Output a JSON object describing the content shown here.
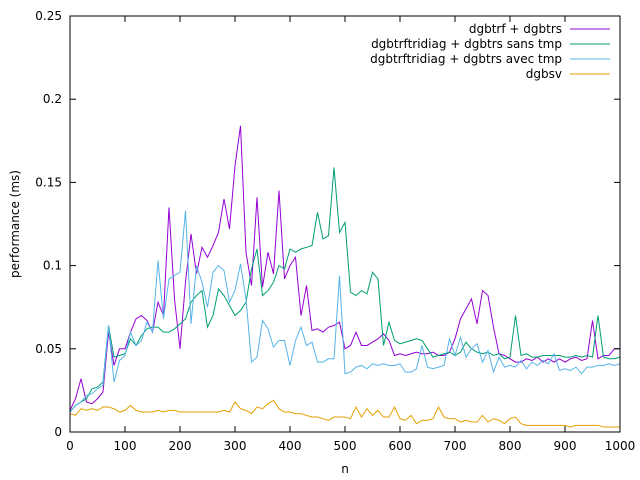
{
  "chart_data": {
    "type": "line",
    "title": "",
    "xlabel": "n",
    "ylabel": "performance (ms)",
    "xlim": [
      0,
      1000
    ],
    "ylim": [
      0,
      0.25
    ],
    "xticks": [
      0,
      100,
      200,
      300,
      400,
      500,
      600,
      700,
      800,
      900,
      1000
    ],
    "yticks": [
      0,
      0.05,
      0.1,
      0.15,
      0.2,
      0.25
    ],
    "xtick_labels": [
      "0",
      "100",
      "200",
      "300",
      "400",
      "500",
      "600",
      "700",
      "800",
      "900",
      "1000"
    ],
    "ytick_labels": [
      "0",
      "0.05",
      "0.1",
      "0.15",
      "0.2",
      "0.25"
    ],
    "grid": false,
    "legend_position": "top-right",
    "x": [
      0,
      10,
      20,
      30,
      40,
      50,
      60,
      70,
      80,
      90,
      100,
      110,
      120,
      130,
      140,
      150,
      160,
      170,
      180,
      190,
      200,
      210,
      220,
      230,
      240,
      250,
      260,
      270,
      280,
      290,
      300,
      310,
      320,
      330,
      340,
      350,
      360,
      370,
      380,
      390,
      400,
      410,
      420,
      430,
      440,
      450,
      460,
      470,
      480,
      490,
      500,
      510,
      520,
      530,
      540,
      550,
      560,
      570,
      580,
      590,
      600,
      610,
      620,
      630,
      640,
      650,
      660,
      670,
      680,
      690,
      700,
      710,
      720,
      730,
      740,
      750,
      760,
      770,
      780,
      790,
      800,
      810,
      820,
      830,
      840,
      850,
      860,
      870,
      880,
      890,
      900,
      910,
      920,
      930,
      940,
      950,
      960,
      970,
      980,
      990,
      1000
    ],
    "series": [
      {
        "name": "dgbtrf + dgbtrs",
        "color": "#9400d3",
        "values": [
          0.013,
          0.02,
          0.032,
          0.018,
          0.017,
          0.02,
          0.024,
          0.06,
          0.04,
          0.05,
          0.05,
          0.06,
          0.068,
          0.07,
          0.067,
          0.06,
          0.078,
          0.07,
          0.135,
          0.08,
          0.05,
          0.09,
          0.119,
          0.095,
          0.111,
          0.105,
          0.112,
          0.12,
          0.14,
          0.122,
          0.16,
          0.184,
          0.108,
          0.088,
          0.141,
          0.087,
          0.108,
          0.095,
          0.145,
          0.092,
          0.1,
          0.105,
          0.07,
          0.088,
          0.061,
          0.062,
          0.06,
          0.063,
          0.064,
          0.066,
          0.05,
          0.052,
          0.06,
          0.052,
          0.052,
          0.054,
          0.056,
          0.059,
          0.055,
          0.046,
          0.047,
          0.046,
          0.047,
          0.048,
          0.047,
          0.047,
          0.048,
          0.046,
          0.046,
          0.048,
          0.056,
          0.068,
          0.074,
          0.08,
          0.065,
          0.085,
          0.082,
          0.063,
          0.047,
          0.046,
          0.044,
          0.042,
          0.042,
          0.044,
          0.043,
          0.045,
          0.042,
          0.044,
          0.042,
          0.044,
          0.042,
          0.044,
          0.045,
          0.043,
          0.044,
          0.067,
          0.044,
          0.046,
          0.046,
          0.05,
          0.05
        ]
      },
      {
        "name": "dgbtrftridiag + dgbtrs sans tmp",
        "color": "#009e73",
        "values": [
          0.012,
          0.016,
          0.018,
          0.02,
          0.026,
          0.027,
          0.03,
          0.064,
          0.045,
          0.046,
          0.047,
          0.056,
          0.052,
          0.058,
          0.062,
          0.063,
          0.063,
          0.06,
          0.06,
          0.062,
          0.065,
          0.068,
          0.078,
          0.082,
          0.085,
          0.063,
          0.07,
          0.086,
          0.082,
          0.076,
          0.07,
          0.073,
          0.078,
          0.098,
          0.11,
          0.082,
          0.085,
          0.09,
          0.1,
          0.098,
          0.11,
          0.108,
          0.11,
          0.111,
          0.112,
          0.132,
          0.116,
          0.118,
          0.159,
          0.12,
          0.126,
          0.084,
          0.082,
          0.085,
          0.083,
          0.096,
          0.092,
          0.052,
          0.066,
          0.055,
          0.053,
          0.054,
          0.055,
          0.056,
          0.055,
          0.05,
          0.045,
          0.046,
          0.047,
          0.048,
          0.046,
          0.048,
          0.054,
          0.05,
          0.048,
          0.047,
          0.048,
          0.046,
          0.047,
          0.044,
          0.045,
          0.07,
          0.046,
          0.047,
          0.045,
          0.045,
          0.046,
          0.046,
          0.046,
          0.046,
          0.045,
          0.045,
          0.046,
          0.045,
          0.046,
          0.045,
          0.07,
          0.045,
          0.044,
          0.044,
          0.045
        ]
      },
      {
        "name": "dgbtrftridiag + dgbtrs avec tmp",
        "color": "#56b4e9",
        "values": [
          0.012,
          0.016,
          0.018,
          0.022,
          0.023,
          0.026,
          0.028,
          0.064,
          0.03,
          0.043,
          0.046,
          0.06,
          0.052,
          0.055,
          0.066,
          0.06,
          0.103,
          0.068,
          0.092,
          0.094,
          0.096,
          0.133,
          0.065,
          0.1,
          0.09,
          0.075,
          0.096,
          0.1,
          0.097,
          0.078,
          0.085,
          0.101,
          0.08,
          0.042,
          0.045,
          0.067,
          0.062,
          0.051,
          0.055,
          0.055,
          0.04,
          0.055,
          0.063,
          0.052,
          0.054,
          0.042,
          0.042,
          0.044,
          0.044,
          0.094,
          0.035,
          0.036,
          0.039,
          0.04,
          0.038,
          0.041,
          0.04,
          0.041,
          0.04,
          0.04,
          0.041,
          0.036,
          0.036,
          0.038,
          0.052,
          0.039,
          0.038,
          0.039,
          0.04,
          0.056,
          0.046,
          0.057,
          0.045,
          0.05,
          0.053,
          0.042,
          0.049,
          0.036,
          0.045,
          0.039,
          0.04,
          0.039,
          0.043,
          0.038,
          0.042,
          0.04,
          0.043,
          0.041,
          0.047,
          0.037,
          0.038,
          0.037,
          0.039,
          0.035,
          0.039,
          0.039,
          0.04,
          0.04,
          0.041,
          0.04,
          0.041
        ]
      },
      {
        "name": "dgbsv",
        "color": "#e69f00",
        "values": [
          0.011,
          0.01,
          0.014,
          0.013,
          0.014,
          0.013,
          0.015,
          0.015,
          0.014,
          0.012,
          0.013,
          0.016,
          0.013,
          0.012,
          0.012,
          0.012,
          0.013,
          0.012,
          0.013,
          0.013,
          0.012,
          0.012,
          0.012,
          0.012,
          0.012,
          0.012,
          0.012,
          0.012,
          0.013,
          0.012,
          0.018,
          0.014,
          0.013,
          0.011,
          0.015,
          0.014,
          0.017,
          0.019,
          0.014,
          0.012,
          0.012,
          0.011,
          0.011,
          0.01,
          0.009,
          0.009,
          0.008,
          0.007,
          0.009,
          0.009,
          0.009,
          0.008,
          0.015,
          0.009,
          0.014,
          0.01,
          0.013,
          0.009,
          0.009,
          0.015,
          0.008,
          0.007,
          0.01,
          0.005,
          0.007,
          0.007,
          0.008,
          0.015,
          0.009,
          0.008,
          0.008,
          0.006,
          0.007,
          0.006,
          0.006,
          0.01,
          0.006,
          0.008,
          0.007,
          0.005,
          0.008,
          0.009,
          0.005,
          0.004,
          0.004,
          0.004,
          0.004,
          0.004,
          0.004,
          0.004,
          0.004,
          0.003,
          0.004,
          0.004,
          0.004,
          0.004,
          0.004,
          0.003,
          0.003,
          0.003,
          0.003
        ]
      }
    ]
  }
}
